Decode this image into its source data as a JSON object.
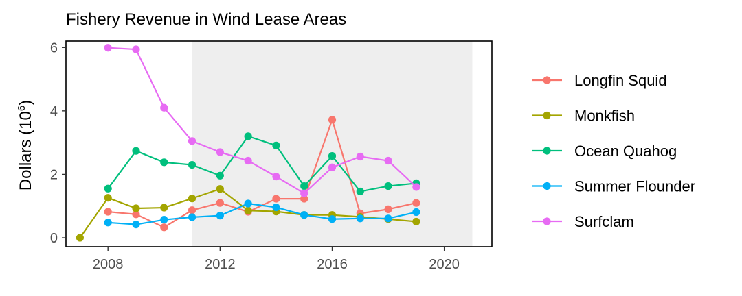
{
  "chart_data": {
    "type": "line",
    "title": "Fishery Revenue in Wind Lease Areas",
    "xlabel": "",
    "ylabel": "Dollars (10",
    "ylabel_superscript": "6",
    "ylabel_close": ")",
    "xlim": [
      2006.5,
      2021.7
    ],
    "ylim": [
      -0.28,
      6.2
    ],
    "x_ticks": [
      2008,
      2012,
      2016,
      2020
    ],
    "y_ticks": [
      0,
      2,
      4,
      6
    ],
    "x_tick_labels": [
      "2008",
      "2012",
      "2016",
      "2020"
    ],
    "y_tick_labels": [
      "0",
      "2",
      "4",
      "6"
    ],
    "shaded_region": {
      "x_start": 2011,
      "x_end": 2021,
      "color": "#eeeeee"
    },
    "grid": false,
    "legend_position": "right",
    "series": [
      {
        "name": "Longfin Squid",
        "color": "#F8766D",
        "x": [
          2008,
          2009,
          2010,
          2011,
          2012,
          2013,
          2014,
          2015,
          2016,
          2017,
          2018,
          2019
        ],
        "y": [
          0.82,
          0.74,
          0.33,
          0.87,
          1.1,
          0.82,
          1.23,
          1.23,
          3.72,
          0.77,
          0.9,
          1.1
        ]
      },
      {
        "name": "Monkfish",
        "color": "#A3A500",
        "x": [
          2007,
          2008,
          2009,
          2010,
          2011,
          2012,
          2013,
          2014,
          2015,
          2016,
          2017,
          2018,
          2019
        ],
        "y": [
          0.0,
          1.26,
          0.93,
          0.95,
          1.24,
          1.54,
          0.86,
          0.83,
          0.72,
          0.72,
          0.66,
          0.59,
          0.51
        ]
      },
      {
        "name": "Ocean Quahog",
        "color": "#00BF7D",
        "x": [
          2008,
          2009,
          2010,
          2011,
          2012,
          2013,
          2014,
          2015,
          2016,
          2017,
          2018,
          2019
        ],
        "y": [
          1.55,
          2.74,
          2.38,
          2.3,
          1.96,
          3.2,
          2.91,
          1.63,
          2.58,
          1.46,
          1.63,
          1.72
        ]
      },
      {
        "name": "Summer Flounder",
        "color": "#00B0F6",
        "x": [
          2008,
          2009,
          2010,
          2011,
          2012,
          2013,
          2014,
          2015,
          2016,
          2017,
          2018,
          2019
        ],
        "y": [
          0.48,
          0.42,
          0.57,
          0.65,
          0.7,
          1.08,
          0.96,
          0.72,
          0.59,
          0.61,
          0.61,
          0.81
        ]
      },
      {
        "name": "Surfclam",
        "color": "#E76BF3",
        "x": [
          2008,
          2009,
          2010,
          2011,
          2012,
          2013,
          2014,
          2015,
          2016,
          2017,
          2018,
          2019
        ],
        "y": [
          5.99,
          5.94,
          4.1,
          3.05,
          2.7,
          2.43,
          1.93,
          1.4,
          2.22,
          2.56,
          2.43,
          1.6
        ]
      }
    ]
  }
}
